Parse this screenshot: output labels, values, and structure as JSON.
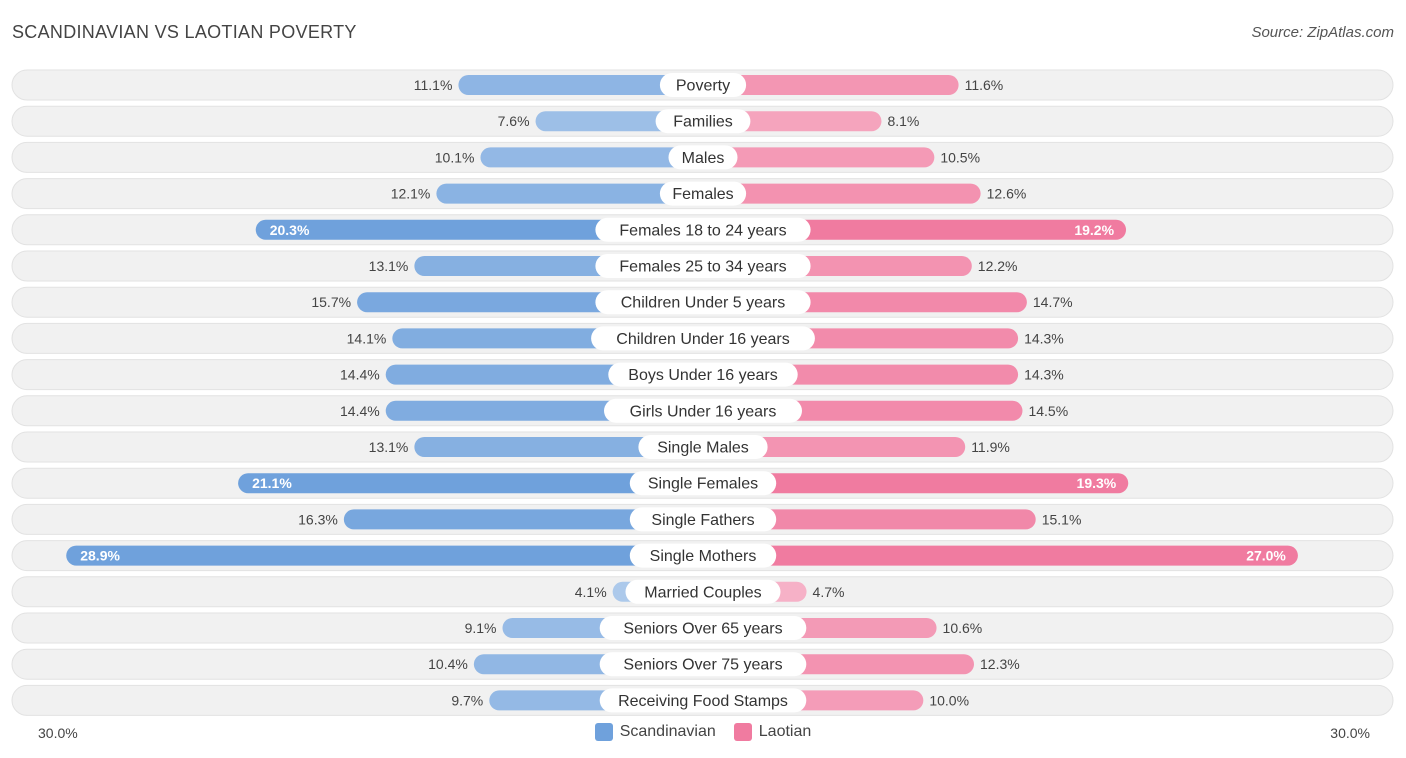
{
  "header": {
    "title": "SCANDINAVIAN VS LAOTIAN POVERTY",
    "source": "Source: ZipAtlas.com"
  },
  "axis": {
    "left_label": "30.0%",
    "right_label": "30.0%"
  },
  "legend": {
    "items": [
      {
        "label": "Scandinavian",
        "color": "#6fa1dc"
      },
      {
        "label": "Laotian",
        "color": "#f07ba0"
      }
    ]
  },
  "chart_data": {
    "type": "bar",
    "orientation": "horizontal-diverging",
    "title": "SCANDINAVIAN VS LAOTIAN POVERTY",
    "xlim": [
      -30,
      30
    ],
    "unit": "%",
    "categories": [
      "Poverty",
      "Families",
      "Males",
      "Females",
      "Females 18 to 24 years",
      "Females 25 to 34 years",
      "Children Under 5 years",
      "Children Under 16 years",
      "Boys Under 16 years",
      "Girls Under 16 years",
      "Single Males",
      "Single Females",
      "Single Fathers",
      "Single Mothers",
      "Married Couples",
      "Seniors Over 65 years",
      "Seniors Over 75 years",
      "Receiving Food Stamps"
    ],
    "series": [
      {
        "name": "Scandinavian",
        "color": "#6fa1dc",
        "values": [
          11.1,
          7.6,
          10.1,
          12.1,
          20.3,
          13.1,
          15.7,
          14.1,
          14.4,
          14.4,
          13.1,
          21.1,
          16.3,
          28.9,
          4.1,
          9.1,
          10.4,
          9.7
        ],
        "labels": [
          "11.1%",
          "7.6%",
          "10.1%",
          "12.1%",
          "20.3%",
          "13.1%",
          "15.7%",
          "14.1%",
          "14.4%",
          "14.4%",
          "13.1%",
          "21.1%",
          "16.3%",
          "28.9%",
          "4.1%",
          "9.1%",
          "10.4%",
          "9.7%"
        ]
      },
      {
        "name": "Laotian",
        "color": "#f07ba0",
        "values": [
          11.6,
          8.1,
          10.5,
          12.6,
          19.2,
          12.2,
          14.7,
          14.3,
          14.3,
          14.5,
          11.9,
          19.3,
          15.1,
          27.0,
          4.7,
          10.6,
          12.3,
          10.0
        ],
        "labels": [
          "11.6%",
          "8.1%",
          "10.5%",
          "12.6%",
          "19.2%",
          "12.2%",
          "14.7%",
          "14.3%",
          "14.3%",
          "14.5%",
          "11.9%",
          "19.3%",
          "15.1%",
          "27.0%",
          "4.7%",
          "10.6%",
          "12.3%",
          "10.0%"
        ]
      }
    ]
  }
}
